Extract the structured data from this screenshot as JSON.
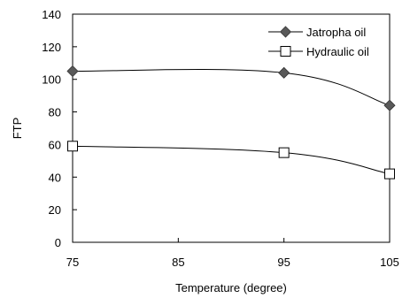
{
  "chart_data": {
    "type": "line",
    "xlabel": "Temperature (degree)",
    "ylabel": "FTP",
    "x": [
      75,
      95,
      105
    ],
    "xlim": [
      75,
      105
    ],
    "ylim": [
      0,
      140
    ],
    "xticks": [
      "75",
      "85",
      "95",
      "105"
    ],
    "yticks": [
      "0",
      "20",
      "40",
      "60",
      "80",
      "100",
      "120",
      "140"
    ],
    "grid": false,
    "legend_position": "top-right",
    "series": [
      {
        "name": "Jatropha oil",
        "values": [
          105,
          104,
          84
        ],
        "marker": "diamond",
        "color": "#595959"
      },
      {
        "name": "Hydraulic oil",
        "values": [
          59,
          55,
          42
        ],
        "marker": "square-open",
        "color": "#000000"
      }
    ]
  }
}
